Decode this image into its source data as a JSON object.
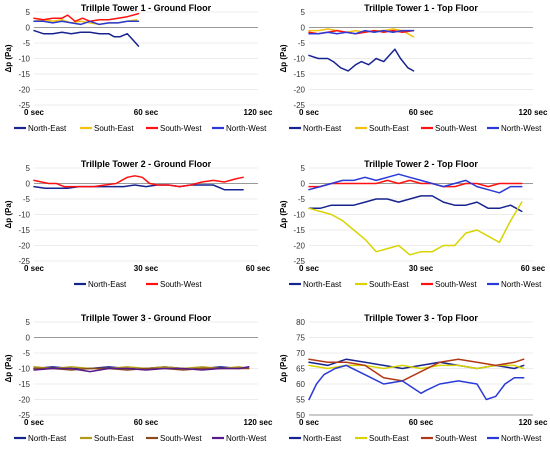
{
  "colors": {
    "navy": "#17248f",
    "gold": "#f4c20d",
    "red": "#ff1111",
    "blue": "#2a3ad6",
    "yellow": "#d8d400",
    "darkred": "#b03a17",
    "brown": "#8b4a1a",
    "darkgold": "#b39a16",
    "purple": "#5a1a8c"
  },
  "chart_data": [
    {
      "type": "line",
      "title": "Trillple Tower 1 - Ground Floor",
      "ylabel": "Δp (Pa)",
      "ylim": [
        -25,
        5
      ],
      "yticks": [
        5,
        0,
        -5,
        -10,
        -15,
        -20,
        -25
      ],
      "xlim": [
        0,
        120
      ],
      "xticks": [
        {
          "value": 0,
          "label": "0 sec"
        },
        {
          "value": 60,
          "label": "60 sec"
        },
        {
          "value": 120,
          "label": "120 sec"
        }
      ],
      "legend": "bottom",
      "series": [
        {
          "name": "North-East",
          "color": "#17248f",
          "x": [
            0,
            5,
            10,
            15,
            20,
            25,
            30,
            35,
            40,
            43,
            46,
            50,
            53,
            56
          ],
          "y": [
            -1,
            -2,
            -2,
            -1.5,
            -2,
            -1.5,
            -1.5,
            -2,
            -2,
            -3,
            -3,
            -2,
            -4,
            -6
          ]
        },
        {
          "name": "South-East",
          "color": "#f4c20d",
          "x": [
            0,
            5,
            10,
            15,
            20,
            25,
            30,
            35,
            40,
            45,
            50,
            55
          ],
          "y": [
            2,
            2.5,
            2,
            2.5,
            1.5,
            2,
            1.5,
            1,
            1.5,
            1.5,
            2,
            2.5
          ]
        },
        {
          "name": "South-West",
          "color": "#ff1111",
          "x": [
            0,
            5,
            10,
            15,
            18,
            22,
            26,
            30,
            35,
            40,
            45,
            50,
            56
          ],
          "y": [
            3,
            2.5,
            3,
            3,
            4,
            2,
            3,
            2,
            2.5,
            2.5,
            3,
            3.5,
            4.5
          ]
        },
        {
          "name": "North-West",
          "color": "#2a3ad6",
          "x": [
            0,
            5,
            10,
            15,
            20,
            25,
            30,
            35,
            40,
            45,
            50,
            56
          ],
          "y": [
            2,
            2,
            1.5,
            2,
            1.5,
            1,
            2,
            1,
            1.5,
            1.5,
            2,
            2
          ]
        }
      ]
    },
    {
      "type": "line",
      "title": "Trillple Tower 1 - Top Floor",
      "ylabel": "Δp (Pa)",
      "ylim": [
        -25,
        5
      ],
      "yticks": [
        5,
        0,
        -5,
        -10,
        -15,
        -20,
        -25
      ],
      "xlim": [
        0,
        120
      ],
      "xticks": [
        {
          "value": 0,
          "label": "0 sec"
        },
        {
          "value": 60,
          "label": "60 sec"
        },
        {
          "value": 120,
          "label": "120 sec"
        }
      ],
      "legend": "bottom",
      "series": [
        {
          "name": "North-East",
          "color": "#17248f",
          "x": [
            0,
            5,
            10,
            13,
            17,
            21,
            25,
            28,
            32,
            36,
            40,
            43,
            46,
            49,
            53,
            56
          ],
          "y": [
            -9,
            -10,
            -10,
            -11,
            -13,
            -14,
            -12,
            -11,
            -12,
            -10,
            -11,
            -9,
            -7,
            -10,
            -13,
            -14
          ]
        },
        {
          "name": "South-East",
          "color": "#f4c20d",
          "x": [
            0,
            5,
            10,
            15,
            20,
            25,
            30,
            35,
            40,
            45,
            50,
            53,
            56
          ],
          "y": [
            -1,
            -1,
            -0.5,
            -1,
            -1.5,
            -1,
            -1.5,
            -1,
            -1,
            -0.5,
            -1,
            -2,
            -3
          ]
        },
        {
          "name": "South-West",
          "color": "#ff1111",
          "x": [
            0,
            5,
            10,
            15,
            20,
            25,
            30,
            35,
            40,
            45,
            50,
            56
          ],
          "y": [
            -1.5,
            -2,
            -1.5,
            -1,
            -1.5,
            -2,
            -1.5,
            -1,
            -1.5,
            -1,
            -1.5,
            -1
          ]
        },
        {
          "name": "North-West",
          "color": "#2a3ad6",
          "x": [
            0,
            5,
            10,
            15,
            20,
            25,
            30,
            35,
            40,
            45,
            50,
            56
          ],
          "y": [
            -2,
            -2,
            -1.5,
            -2,
            -1.5,
            -2,
            -1,
            -1.5,
            -1,
            -1.5,
            -1,
            -1
          ]
        }
      ]
    },
    {
      "type": "line",
      "title": "Trillple Tower 2 - Ground Floor",
      "ylabel": "Δp (Pa)",
      "ylim": [
        -25,
        5
      ],
      "yticks": [
        5,
        0,
        -5,
        -10,
        -15,
        -20,
        -25
      ],
      "xlim": [
        0,
        60
      ],
      "xticks": [
        {
          "value": 0,
          "label": "0 sec"
        },
        {
          "value": 30,
          "label": "30 sec"
        },
        {
          "value": 60,
          "label": "60 sec"
        }
      ],
      "legend": "bottom",
      "series": [
        {
          "name": "North-East",
          "color": "#17248f",
          "x": [
            0,
            3,
            6,
            9,
            12,
            15,
            18,
            21,
            24,
            27,
            30,
            33,
            36,
            39,
            42,
            45,
            48,
            51,
            54,
            56
          ],
          "y": [
            -1,
            -1.5,
            -1.5,
            -1.5,
            -1,
            -1,
            -1,
            -1,
            -1,
            -0.5,
            -1,
            -0.5,
            -0.5,
            -1,
            -0.5,
            -0.5,
            -0.5,
            -2,
            -2,
            -2
          ]
        },
        {
          "name": "South-West",
          "color": "#ff1111",
          "x": [
            0,
            2,
            4,
            6,
            8,
            10,
            13,
            16,
            19,
            22,
            25,
            27,
            29,
            31,
            33,
            36,
            39,
            42,
            45,
            48,
            51,
            54,
            56
          ],
          "y": [
            1,
            0.5,
            0,
            0,
            -1,
            -1,
            -1,
            -1,
            -0.5,
            0,
            2,
            2.5,
            2,
            0,
            -0.5,
            -0.5,
            -1,
            -0.5,
            0.5,
            1,
            0.5,
            1.5,
            2
          ]
        }
      ]
    },
    {
      "type": "line",
      "title": "Trillple Tower 2 - Top Floor",
      "ylabel": "Δp (Pa)",
      "ylim": [
        -25,
        5
      ],
      "yticks": [
        5,
        0,
        -5,
        -10,
        -15,
        -20,
        -25
      ],
      "xlim": [
        0,
        60
      ],
      "xticks": [
        {
          "value": 0,
          "label": "0 sec"
        },
        {
          "value": 30,
          "label": "30 sec"
        },
        {
          "value": 60,
          "label": "60 sec"
        }
      ],
      "legend": "bottom",
      "series": [
        {
          "name": "North-East",
          "color": "#17248f",
          "x": [
            0,
            3,
            6,
            9,
            12,
            15,
            18,
            21,
            24,
            27,
            30,
            33,
            36,
            39,
            42,
            45,
            48,
            51,
            54,
            57
          ],
          "y": [
            -8,
            -8,
            -7,
            -7,
            -7,
            -6,
            -5,
            -5,
            -6,
            -5,
            -4,
            -4,
            -6,
            -7,
            -7,
            -6,
            -8,
            -8,
            -7,
            -9
          ]
        },
        {
          "name": "South-East",
          "color": "#d8d400",
          "x": [
            0,
            3,
            6,
            9,
            12,
            15,
            18,
            21,
            24,
            27,
            30,
            33,
            36,
            39,
            42,
            45,
            48,
            51,
            54,
            57
          ],
          "y": [
            -8,
            -9,
            -10,
            -12,
            -15,
            -18,
            -22,
            -21,
            -20,
            -23,
            -22,
            -22,
            -20,
            -20,
            -16,
            -15,
            -17,
            -19,
            -12,
            -6
          ]
        },
        {
          "name": "South-West",
          "color": "#ff1111",
          "x": [
            0,
            3,
            6,
            9,
            12,
            15,
            18,
            21,
            24,
            27,
            30,
            33,
            36,
            39,
            42,
            45,
            48,
            51,
            54,
            57
          ],
          "y": [
            -1,
            -1,
            0,
            0,
            0,
            0,
            0,
            1,
            0,
            1,
            0,
            0,
            -1,
            -1,
            0,
            0,
            -1,
            0,
            0,
            0
          ]
        },
        {
          "name": "North-West",
          "color": "#2a3ad6",
          "x": [
            0,
            3,
            6,
            9,
            12,
            15,
            18,
            21,
            24,
            27,
            30,
            33,
            36,
            39,
            42,
            45,
            48,
            51,
            54,
            57
          ],
          "y": [
            -2,
            -1,
            0,
            1,
            1,
            2,
            1,
            2,
            3,
            2,
            1,
            0,
            -1,
            0,
            1,
            -1,
            -2,
            -3,
            -1,
            -1
          ]
        }
      ]
    },
    {
      "type": "line",
      "title": "Trillple Tower 3 - Ground Floor",
      "ylabel": "Δp (Pa)",
      "ylim": [
        -25,
        5
      ],
      "yticks": [
        5,
        0,
        -5,
        -10,
        -15,
        -20,
        -25
      ],
      "xlim": [
        0,
        120
      ],
      "xticks": [
        {
          "value": 0,
          "label": "0 sec"
        },
        {
          "value": 60,
          "label": "60 sec"
        },
        {
          "value": 120,
          "label": "120 sec"
        }
      ],
      "legend": "bottom",
      "series": [
        {
          "name": "North-East",
          "color": "#17248f",
          "x": [
            0,
            10,
            20,
            30,
            40,
            50,
            60,
            70,
            80,
            90,
            100,
            110,
            115
          ],
          "y": [
            -10,
            -9.5,
            -10,
            -10,
            -9.5,
            -10,
            -10,
            -9.5,
            -10,
            -10,
            -9.5,
            -10,
            -9.5
          ]
        },
        {
          "name": "South-East",
          "color": "#b39a16",
          "x": [
            0,
            10,
            20,
            30,
            40,
            50,
            60,
            70,
            80,
            90,
            100,
            110,
            115
          ],
          "y": [
            -9.5,
            -10,
            -9.5,
            -10,
            -10,
            -9.5,
            -10,
            -9.5,
            -10,
            -9.5,
            -10,
            -9.5,
            -10
          ]
        },
        {
          "name": "South-West",
          "color": "#8b4a1a",
          "x": [
            0,
            10,
            20,
            30,
            40,
            50,
            60,
            70,
            80,
            90,
            100,
            110,
            115
          ],
          "y": [
            -10,
            -10,
            -10.5,
            -10,
            -10,
            -10.5,
            -10,
            -10,
            -10.5,
            -10,
            -10,
            -10,
            -10
          ]
        },
        {
          "name": "North-West",
          "color": "#5a1a8c",
          "x": [
            0,
            10,
            20,
            30,
            40,
            50,
            60,
            70,
            80,
            90,
            100,
            110,
            115
          ],
          "y": [
            -10.5,
            -10,
            -10,
            -11,
            -10,
            -10,
            -10.5,
            -10,
            -10,
            -10.5,
            -10,
            -10,
            -9.5
          ]
        }
      ]
    },
    {
      "type": "line",
      "title": "Trillple Tower 3 - Top Floor",
      "ylabel": "Δp (Pa)",
      "ylim": [
        50,
        80
      ],
      "yticks": [
        80,
        75,
        70,
        65,
        60,
        55,
        50
      ],
      "xlim": [
        0,
        120
      ],
      "xticks": [
        {
          "value": 0,
          "label": "0 sec"
        },
        {
          "value": 60,
          "label": "60 sec"
        },
        {
          "value": 120,
          "label": "120 sec"
        }
      ],
      "legend": "bottom",
      "series": [
        {
          "name": "North-East",
          "color": "#17248f",
          "x": [
            0,
            10,
            20,
            30,
            40,
            50,
            60,
            70,
            80,
            90,
            100,
            110,
            115
          ],
          "y": [
            67,
            66,
            68,
            67,
            66,
            65,
            66,
            67,
            66,
            65,
            66,
            65,
            66
          ]
        },
        {
          "name": "South-East",
          "color": "#d8d400",
          "x": [
            0,
            10,
            20,
            30,
            40,
            50,
            60,
            70,
            80,
            90,
            100,
            110,
            115
          ],
          "y": [
            66,
            65,
            66,
            66,
            65,
            66,
            65,
            66,
            66,
            65,
            66,
            66,
            65
          ]
        },
        {
          "name": "South-West",
          "color": "#b03a17",
          "x": [
            0,
            10,
            20,
            30,
            40,
            50,
            60,
            70,
            80,
            90,
            100,
            110,
            115
          ],
          "y": [
            68,
            67,
            67,
            66,
            62,
            61,
            64,
            67,
            68,
            67,
            66,
            67,
            68
          ]
        },
        {
          "name": "North-West",
          "color": "#2a3ad6",
          "x": [
            0,
            4,
            8,
            14,
            20,
            30,
            40,
            50,
            60,
            63,
            70,
            80,
            90,
            95,
            100,
            105,
            110,
            115
          ],
          "y": [
            55,
            60,
            63,
            65,
            66,
            63,
            60,
            61,
            57,
            58,
            60,
            61,
            60,
            55,
            56,
            60,
            62,
            62
          ]
        }
      ]
    }
  ]
}
